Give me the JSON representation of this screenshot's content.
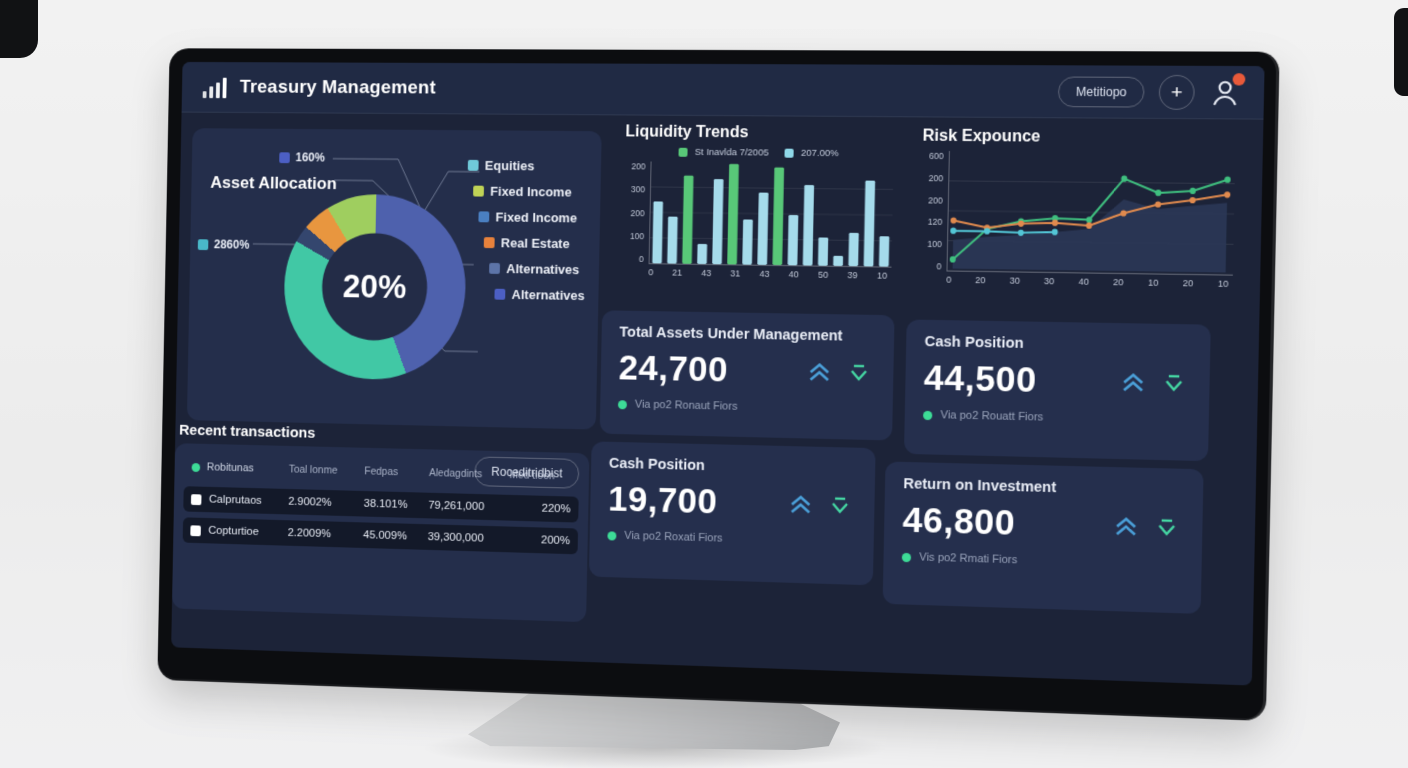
{
  "header": {
    "title": "Treasury Management",
    "menu_button": "Metitiopo",
    "add_button": "+"
  },
  "asset_allocation": {
    "title": "Asset Allocation",
    "callouts": [
      {
        "label": "160%",
        "color": "#4c5fc4"
      },
      {
        "label": "2860%",
        "color": "#49b8c9"
      }
    ],
    "legend": [
      {
        "label": "Equities",
        "color": "#6fc9d9"
      },
      {
        "label": "Fixed Income",
        "color": "#c0d356"
      },
      {
        "label": "Fixed Income",
        "color": "#4a7fc1"
      },
      {
        "label": "Real Estate",
        "color": "#e8823c"
      },
      {
        "label": "Alternatives",
        "color": "#5d74a8"
      },
      {
        "label": "Alternatives",
        "color": "#4c5fc4"
      }
    ]
  },
  "cards": [
    {
      "title": "Total Assets Under Management",
      "value": "24,700",
      "caption": "Via po2 Ronaut Fiors"
    },
    {
      "title": "Cash Position",
      "value": "44,500",
      "caption": "Via po2 Rouatt Fiors"
    },
    {
      "title": "Cash Position",
      "value": "19,700",
      "caption": "Via po2 Roxati Fiors"
    },
    {
      "title": "Return on Investment",
      "value": "46,800",
      "caption": "Vis po2 Rmati Fiors"
    }
  ],
  "transactions": {
    "title": "Recent transactions",
    "action_button": "Roceditridbist",
    "columns": [
      "Robitunas",
      "Toal lonme",
      "Fedpas",
      "Aledagdints",
      "Med tioon"
    ],
    "rows": [
      [
        "Calprutaos",
        "2.9002%",
        "38.101%",
        "79,261,000",
        "220%"
      ],
      [
        "Copturtioe",
        "2.2009%",
        "45.009%",
        "39,300,000",
        "200%"
      ]
    ],
    "status_color": "#3ddc97"
  },
  "chart_data": [
    {
      "id": "asset-allocation",
      "type": "pie",
      "style": "donut",
      "title": "Asset Allocation",
      "center_label": "20%",
      "segments": [
        {
          "label": "Alternatives",
          "value": 44,
          "color": "#4e61ad"
        },
        {
          "label": "Equities",
          "value": 39,
          "color": "#41c8a5"
        },
        {
          "label": "Alternatives",
          "value": 3,
          "color": "#34466e"
        },
        {
          "label": "Real Estate",
          "value": 5,
          "color": "#e8963f"
        },
        {
          "label": "Fixed Income",
          "value": 9,
          "color": "#9fce5f"
        }
      ]
    },
    {
      "id": "liquidity-trends",
      "type": "bar",
      "title": "Liquidity Trends",
      "legend": [
        {
          "label": "St Inavlda 7/2005",
          "color": "#58c878"
        },
        {
          "label": "207.00%",
          "color": "#8fd8e8"
        }
      ],
      "y_ticks": [
        "200",
        "300",
        "200",
        "100",
        "0"
      ],
      "x_ticks": [
        "0",
        "21",
        "43",
        "31",
        "43",
        "40",
        "50",
        "39",
        "10"
      ],
      "values": [
        62,
        47,
        88,
        20,
        85,
        100,
        45,
        72,
        97,
        50,
        80,
        28,
        10,
        33,
        85,
        30
      ],
      "highlight_indices": [
        2,
        5,
        8
      ],
      "colors": {
        "default": "#a5dbeb",
        "highlight": "#58c878"
      },
      "ylim": [
        0,
        100
      ],
      "grid": true,
      "note": "values are percent of plot height; axis labels transcribed from source"
    },
    {
      "id": "risk-expounce",
      "type": "line",
      "title": "Risk Expounce",
      "y_ticks": [
        "600",
        "200",
        "200",
        "120",
        "100",
        "0"
      ],
      "x_ticks": [
        "0",
        "20",
        "30",
        "30",
        "40",
        "20",
        "10",
        "20",
        "10"
      ],
      "series": [
        {
          "name": "background-area",
          "type": "area",
          "color": "#2b3756",
          "values": [
            25,
            28,
            30,
            33,
            36,
            62,
            54,
            57,
            60
          ]
        },
        {
          "name": "green-line",
          "type": "line",
          "color": "#3fbf7f",
          "values": [
            8,
            35,
            42,
            45,
            44,
            80,
            68,
            70,
            80
          ]
        },
        {
          "name": "orange-line",
          "type": "line",
          "color": "#e08a4e",
          "values": [
            42,
            36,
            40,
            41,
            39,
            50,
            58,
            62,
            67
          ]
        },
        {
          "name": "teal-line",
          "type": "line",
          "color": "#53c6d6",
          "values": [
            33,
            33,
            32,
            33
          ]
        }
      ],
      "ylim": [
        0,
        100
      ],
      "grid": true
    }
  ]
}
